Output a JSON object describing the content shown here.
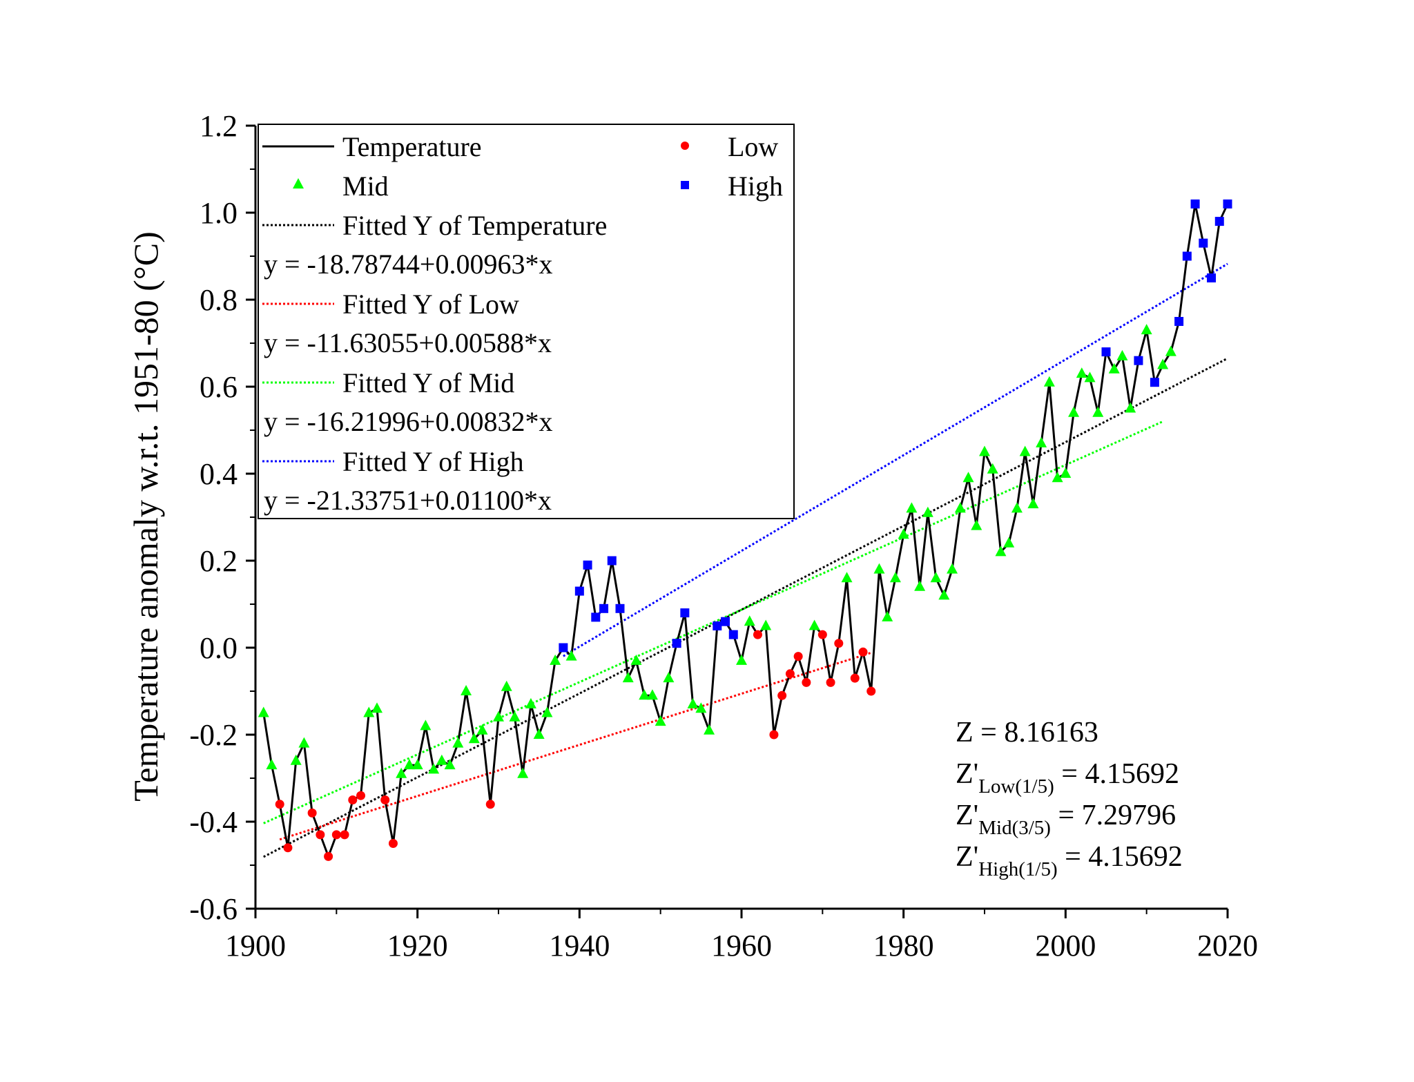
{
  "chart_data": {
    "type": "scatter",
    "ylabel": "Temperature anomaly w.r.t. 1951-80 (°C)",
    "xlim": [
      1900,
      2020
    ],
    "ylim": [
      -0.6,
      1.2
    ],
    "xticks": [
      "1900",
      "1920",
      "1940",
      "1960",
      "1980",
      "2000",
      "2020"
    ],
    "yticks": [
      "-0.6",
      "-0.4",
      "-0.2",
      "0.0",
      "0.2",
      "0.4",
      "0.6",
      "0.8",
      "1.0",
      "1.2"
    ],
    "legend_position": "top-left",
    "colors": {
      "temperature": "#000000",
      "low": "#ff0000",
      "mid": "#00ff00",
      "high": "#0000ff"
    },
    "legend": {
      "temperature": "Temperature",
      "mid": "Mid",
      "low": "Low",
      "high": "High",
      "fit_temperature": "Fitted Y of Temperature",
      "eq_temperature": "y = -18.78744+0.00963*x",
      "fit_low": "Fitted Y of Low",
      "eq_low": "y = -11.63055+0.00588*x",
      "fit_mid": "Fitted Y of Mid",
      "eq_mid": "y = -16.21996+0.00832*x",
      "fit_high": "Fitted Y of High",
      "eq_high": "y = -21.33751+0.01100*x"
    },
    "annotations": {
      "z": "Z = 8.16163",
      "z_low_main": "Z'",
      "z_low_sub": "Low(1/5)",
      "z_low_val": " = 4.15692",
      "z_mid_main": "Z'",
      "z_mid_sub": "Mid(3/5)",
      "z_mid_val": " = 7.29796",
      "z_high_main": "Z'",
      "z_high_sub": "High(1/5)",
      "z_high_val": " = 4.15692"
    },
    "series": [
      {
        "name": "Temperature",
        "x": [
          1901,
          1902,
          1903,
          1904,
          1905,
          1906,
          1907,
          1908,
          1909,
          1910,
          1911,
          1912,
          1913,
          1914,
          1915,
          1916,
          1917,
          1918,
          1919,
          1920,
          1921,
          1922,
          1923,
          1924,
          1925,
          1926,
          1927,
          1928,
          1929,
          1930,
          1931,
          1932,
          1933,
          1934,
          1935,
          1936,
          1937,
          1938,
          1939,
          1940,
          1941,
          1942,
          1943,
          1944,
          1945,
          1946,
          1947,
          1948,
          1949,
          1950,
          1951,
          1952,
          1953,
          1954,
          1955,
          1956,
          1957,
          1958,
          1959,
          1960,
          1961,
          1962,
          1963,
          1964,
          1965,
          1966,
          1967,
          1968,
          1969,
          1970,
          1971,
          1972,
          1973,
          1974,
          1975,
          1976,
          1977,
          1978,
          1979,
          1980,
          1981,
          1982,
          1983,
          1984,
          1985,
          1986,
          1987,
          1988,
          1989,
          1990,
          1991,
          1992,
          1993,
          1994,
          1995,
          1996,
          1997,
          1998,
          1999,
          2000,
          2001,
          2002,
          2003,
          2004,
          2005,
          2006,
          2007,
          2008,
          2009,
          2010,
          2011,
          2012,
          2013,
          2014,
          2015,
          2016,
          2017,
          2018,
          2019,
          2020
        ],
        "y": [
          -0.15,
          -0.27,
          -0.36,
          -0.46,
          -0.26,
          -0.22,
          -0.38,
          -0.43,
          -0.48,
          -0.43,
          -0.43,
          -0.35,
          -0.34,
          -0.15,
          -0.14,
          -0.35,
          -0.45,
          -0.29,
          -0.27,
          -0.27,
          -0.18,
          -0.28,
          -0.26,
          -0.27,
          -0.22,
          -0.1,
          -0.21,
          -0.19,
          -0.36,
          -0.16,
          -0.09,
          -0.16,
          -0.29,
          -0.13,
          -0.2,
          -0.15,
          -0.03,
          0.0,
          -0.02,
          0.13,
          0.19,
          0.07,
          0.09,
          0.2,
          0.09,
          -0.07,
          -0.03,
          -0.11,
          -0.11,
          -0.17,
          -0.07,
          0.01,
          0.08,
          -0.13,
          -0.14,
          -0.19,
          0.05,
          0.06,
          0.03,
          -0.03,
          0.06,
          0.03,
          0.05,
          -0.2,
          -0.11,
          -0.06,
          -0.02,
          -0.08,
          0.05,
          0.03,
          -0.08,
          0.01,
          0.16,
          -0.07,
          -0.01,
          -0.1,
          0.18,
          0.07,
          0.16,
          0.26,
          0.32,
          0.14,
          0.31,
          0.16,
          0.12,
          0.18,
          0.32,
          0.39,
          0.28,
          0.45,
          0.41,
          0.22,
          0.24,
          0.32,
          0.45,
          0.33,
          0.47,
          0.61,
          0.39,
          0.4,
          0.54,
          0.63,
          0.62,
          0.54,
          0.68,
          0.64,
          0.67,
          0.55,
          0.66,
          0.73,
          0.61,
          0.65,
          0.68,
          0.75,
          0.9,
          1.02,
          0.93,
          0.85,
          0.98,
          1.02
        ]
      },
      {
        "name": "Low",
        "category": "low"
      },
      {
        "name": "Mid",
        "category": "mid"
      },
      {
        "name": "High",
        "category": "high"
      }
    ],
    "classes": "MMLLMMLLLLLLLMMLLMMMMMMMMMMMLMMMMMMMMHMHHHHHHMMMMMMHHMMMHHHMMLMLLLLLMLLLMLLLMMMMMMMMMMMMMMMMMMMMMMMMMMMMHMMMHMHMMHHHHHHHHH",
    "fits": [
      {
        "name": "Fitted Y of Temperature",
        "intercept": -18.78744,
        "slope": 0.00963,
        "x_range": [
          1901,
          2020
        ],
        "color": "#000000"
      },
      {
        "name": "Fitted Y of Low",
        "intercept": -11.63055,
        "slope": 0.00588,
        "x_range": [
          1903,
          1976
        ],
        "color": "#ff0000"
      },
      {
        "name": "Fitted Y of Mid",
        "intercept": -16.21996,
        "slope": 0.00832,
        "x_range": [
          1901,
          2012
        ],
        "color": "#00ff00"
      },
      {
        "name": "Fitted Y of High",
        "intercept": -21.33751,
        "slope": 0.011,
        "x_range": [
          1938,
          2020
        ],
        "color": "#0000ff"
      }
    ]
  }
}
